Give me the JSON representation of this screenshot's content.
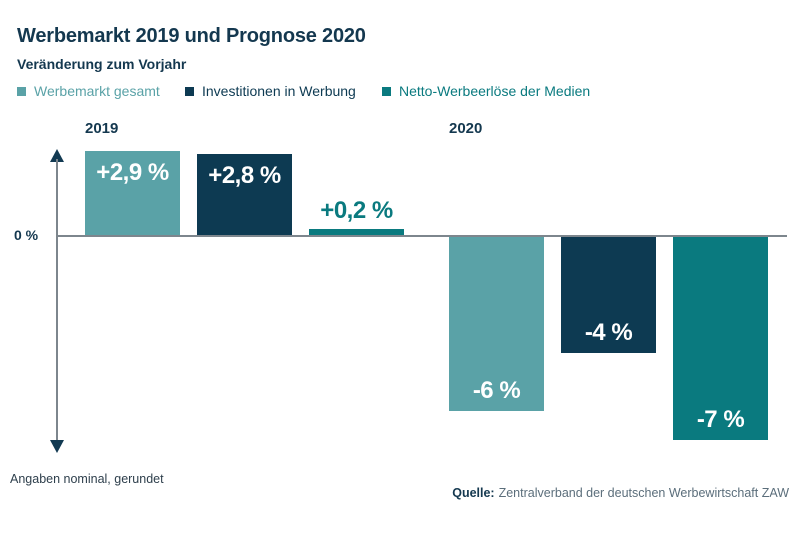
{
  "title": "Werbemarkt 2019 und Prognose 2020",
  "subtitle": "Veränderung zum Vorjahr",
  "legend": [
    {
      "label": "Werbemarkt gesamt",
      "color": "#5AA2A7"
    },
    {
      "label": "Investitionen in Werbung",
      "color": "#0D3A52"
    },
    {
      "label": "Netto-Werbeerlöse der Medien",
      "color": "#0A7A7F"
    }
  ],
  "groups": [
    {
      "label": "2019"
    },
    {
      "label": "2020"
    }
  ],
  "axis": {
    "zero_label": "0 %"
  },
  "footnote": "Angaben nominal, gerundet",
  "source": {
    "prefix": "Quelle:",
    "text": "Zentralverband der deutschen Werbewirtschaft ZAW"
  },
  "colors": {
    "title_navy": "#14384F",
    "axis_gray": "#7D868D",
    "arrow_navy": "#123A52",
    "source_gray": "#5B6E7B",
    "bar_light_teal": "#5AA2A7",
    "bar_navy": "#0D3A52",
    "bar_teal": "#0A7A7F"
  },
  "chart_data": {
    "type": "bar",
    "title": "Werbemarkt 2019 und Prognose 2020",
    "subtitle": "Veränderung zum Vorjahr",
    "unit": "% Veränderung zum Vorjahr",
    "categories": [
      "2019",
      "2020"
    ],
    "series": [
      {
        "name": "Werbemarkt gesamt",
        "values": [
          2.9,
          -6
        ],
        "color": "#5AA2A7"
      },
      {
        "name": "Investitionen in Werbung",
        "values": [
          2.8,
          -4
        ],
        "color": "#0D3A52"
      },
      {
        "name": "Netto-Werbeerlöse der Medien",
        "values": [
          0.2,
          -7
        ],
        "color": "#0A7A7F"
      }
    ],
    "bar_labels": [
      [
        "+2,9 %",
        "+2,8 %",
        "+0,2 %"
      ],
      [
        "-6 %",
        "-4 %",
        "-7 %"
      ]
    ],
    "baseline_label": "0 %",
    "ylim": [
      -7.5,
      3.2
    ],
    "grid": false,
    "legend_position": "top",
    "footnote": "Angaben nominal, gerundet",
    "source": "Quelle: Zentralverband der deutschen Werbewirtschaft ZAW"
  }
}
